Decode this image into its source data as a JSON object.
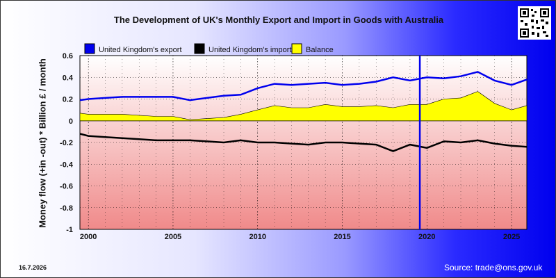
{
  "chart_data": {
    "type": "line",
    "title": "The Development of UK's Monthly Export and Import in Goods with Australia",
    "ylabel": "Money flow (+in -out) * Billion £ / month",
    "xlabel": "",
    "ylim": [
      -1,
      0.6
    ],
    "yticks": [
      "0.6",
      "0.4",
      "0.2",
      "0",
      "-0.2",
      "-0.4",
      "-0.6",
      "-0.8",
      "-1"
    ],
    "xlim": [
      1999.5,
      2025.9
    ],
    "xticks": [
      "2000",
      "2005",
      "2010",
      "2015",
      "2020",
      "2025"
    ],
    "grid": true,
    "legend_position": "top",
    "marker_date": 2019.58,
    "series": [
      {
        "name": "United Kingdom's export",
        "color": "#0000ee",
        "x": [
          1999.5,
          2000,
          2001,
          2002,
          2003,
          2004,
          2005,
          2006,
          2007,
          2008,
          2009,
          2010,
          2011,
          2012,
          2013,
          2014,
          2015,
          2016,
          2017,
          2018,
          2019,
          2020,
          2021,
          2022,
          2023,
          2024,
          2025,
          2025.9
        ],
        "values": [
          0.19,
          0.2,
          0.21,
          0.22,
          0.22,
          0.22,
          0.22,
          0.19,
          0.21,
          0.23,
          0.24,
          0.3,
          0.34,
          0.33,
          0.34,
          0.35,
          0.33,
          0.34,
          0.36,
          0.4,
          0.37,
          0.4,
          0.39,
          0.41,
          0.45,
          0.37,
          0.33,
          0.38
        ]
      },
      {
        "name": "United Kingdom's import",
        "color": "#000000",
        "x": [
          1999.5,
          2000,
          2001,
          2002,
          2003,
          2004,
          2005,
          2006,
          2007,
          2008,
          2009,
          2010,
          2011,
          2012,
          2013,
          2014,
          2015,
          2016,
          2017,
          2018,
          2019,
          2020,
          2021,
          2022,
          2023,
          2024,
          2025,
          2025.9
        ],
        "values": [
          -0.12,
          -0.14,
          -0.15,
          -0.16,
          -0.17,
          -0.18,
          -0.18,
          -0.18,
          -0.19,
          -0.2,
          -0.18,
          -0.2,
          -0.2,
          -0.21,
          -0.22,
          -0.2,
          -0.2,
          -0.21,
          -0.22,
          -0.28,
          -0.22,
          -0.25,
          -0.19,
          -0.2,
          -0.18,
          -0.21,
          -0.23,
          -0.24
        ]
      },
      {
        "name": "Balance",
        "color": "#ffff00",
        "x": [
          1999.5,
          2000,
          2001,
          2002,
          2003,
          2004,
          2005,
          2006,
          2007,
          2008,
          2009,
          2010,
          2011,
          2012,
          2013,
          2014,
          2015,
          2016,
          2017,
          2018,
          2019,
          2020,
          2021,
          2022,
          2023,
          2024,
          2025,
          2025.9
        ],
        "values": [
          0.07,
          0.06,
          0.06,
          0.06,
          0.05,
          0.04,
          0.04,
          0.01,
          0.02,
          0.03,
          0.06,
          0.1,
          0.14,
          0.12,
          0.12,
          0.15,
          0.13,
          0.13,
          0.14,
          0.12,
          0.15,
          0.15,
          0.2,
          0.21,
          0.27,
          0.16,
          0.1,
          0.14
        ]
      }
    ]
  },
  "footer": {
    "date": "16.7.2026",
    "source": "Source: trade@ons.gov.uk"
  },
  "icons": {
    "qr": "qr-code-icon"
  }
}
